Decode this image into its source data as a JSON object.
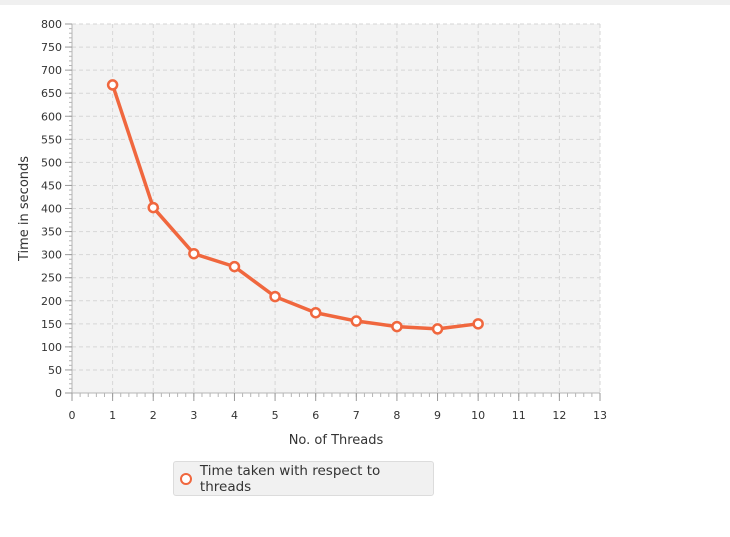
{
  "chart_data": {
    "type": "line",
    "xlabel": "No. of Threads",
    "ylabel": "Time in seconds",
    "xlim": [
      0,
      13
    ],
    "ylim": [
      0,
      800
    ],
    "x_ticks": [
      0,
      1,
      2,
      3,
      4,
      5,
      6,
      7,
      8,
      9,
      10,
      11,
      12,
      13
    ],
    "y_ticks": [
      0,
      50,
      100,
      150,
      200,
      250,
      300,
      350,
      400,
      450,
      500,
      550,
      600,
      650,
      700,
      750,
      800
    ],
    "grid": true,
    "legend_position": "bottom",
    "series": [
      {
        "name": "Time taken with respect to threads",
        "color": "#f0673e",
        "x": [
          1,
          2,
          3,
          4,
          5,
          6,
          7,
          8,
          9,
          10
        ],
        "values": [
          668,
          402,
          302,
          274,
          209,
          174,
          156,
          144,
          139,
          150
        ]
      }
    ]
  }
}
